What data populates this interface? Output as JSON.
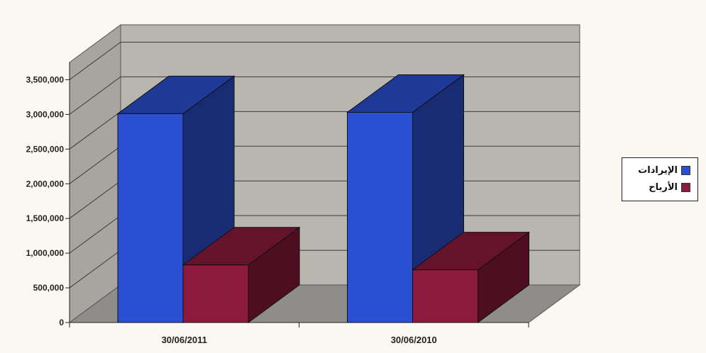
{
  "chart_data": {
    "type": "bar",
    "categories": [
      "30/06/2011",
      "30/06/2010"
    ],
    "series": [
      {
        "name": "الإيرادات",
        "color": "#2b4fd1",
        "values": [
          3010000,
          3030000
        ]
      },
      {
        "name": "الأرباح",
        "color": "#8c1a3e",
        "values": [
          830000,
          760000
        ]
      }
    ],
    "yticks": [
      "0",
      "500,000",
      "1,000,000",
      "1,500,000",
      "2,000,000",
      "2,500,000",
      "3,000,000",
      "3,500,000"
    ],
    "ylim": [
      0,
      3750000
    ],
    "grid": true,
    "legend": "right"
  }
}
